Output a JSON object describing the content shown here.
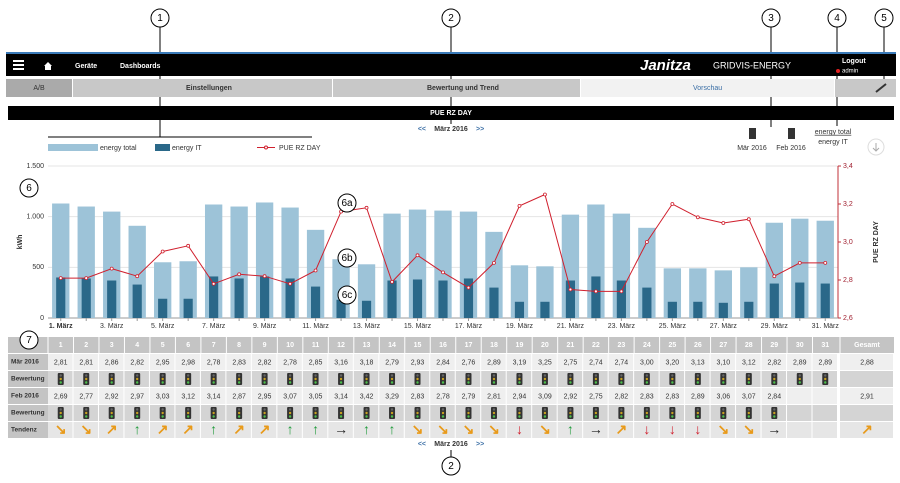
{
  "header": {
    "nav": [
      "Geräte",
      "Dashboards"
    ],
    "brand": "Janitza",
    "product": "GRIDVIS-ENERGY",
    "logout": "Logout",
    "user": "admin"
  },
  "tabs": [
    "A/B",
    "Einstellungen",
    "Bewertung und Trend",
    "Vorschau"
  ],
  "report_title": "PUE RZ DAY",
  "period_nav": {
    "prev": "<<",
    "label": "März 2016",
    "next": ">>"
  },
  "compare": {
    "items": [
      "Mär 2016",
      "Feb 2016"
    ],
    "series": [
      "energy total",
      "energy IT"
    ]
  },
  "callouts": [
    "1",
    "2",
    "3",
    "4",
    "5",
    "6",
    "6a",
    "6b",
    "6c",
    "7",
    "2"
  ],
  "chart_data": {
    "type": "bar",
    "ylabel": "kWh",
    "y2label": "PUE RZ DAY",
    "categories": [
      "1. März",
      null,
      "3. März",
      null,
      "5. März",
      null,
      "7. März",
      null,
      "9. März",
      null,
      "11. März",
      null,
      "13. März",
      null,
      "15. März",
      null,
      "17. März",
      null,
      "19. März",
      null,
      "21. März",
      null,
      "23. März",
      null,
      "25. März",
      null,
      "27. März",
      null,
      "29. März",
      null,
      "31. März"
    ],
    "series": [
      {
        "name": "energy total",
        "color": "#9dc3d8",
        "values": [
          1130,
          1100,
          1050,
          910,
          550,
          560,
          1120,
          1100,
          1140,
          1090,
          870,
          580,
          530,
          1030,
          1070,
          1060,
          1050,
          850,
          520,
          510,
          1020,
          1120,
          1030,
          890,
          490,
          490,
          470,
          500,
          940,
          980,
          960
        ]
      },
      {
        "name": "energy IT",
        "color": "#2a6889",
        "values": [
          400,
          390,
          370,
          330,
          190,
          190,
          410,
          390,
          410,
          390,
          310,
          180,
          170,
          370,
          380,
          370,
          390,
          300,
          160,
          160,
          370,
          410,
          370,
          300,
          160,
          160,
          150,
          160,
          340,
          350,
          340
        ]
      },
      {
        "name": "PUE RZ DAY",
        "color": "#d0202e",
        "type": "line",
        "axis": "y2",
        "values": [
          2.81,
          2.81,
          2.86,
          2.82,
          2.95,
          2.98,
          2.78,
          2.83,
          2.82,
          2.78,
          2.85,
          3.16,
          3.18,
          2.79,
          2.93,
          2.84,
          2.76,
          2.89,
          3.19,
          3.25,
          2.75,
          2.74,
          2.74,
          3.0,
          3.2,
          3.13,
          3.1,
          3.12,
          2.82,
          2.89,
          2.89
        ]
      }
    ],
    "ylim": [
      0,
      1500
    ],
    "yticks": [
      0,
      500,
      {
        "value": 1000,
        "label": "1.000"
      },
      {
        "value": 1500,
        "label": "1.500"
      }
    ],
    "y2lim": [
      2.6,
      3.4
    ],
    "y2ticks": [
      {
        "value": 2.6,
        "label": "2,6"
      },
      {
        "value": 2.8,
        "label": "2,8"
      },
      {
        "value": 3.0,
        "label": "3,0"
      },
      {
        "value": 3.2,
        "label": "3,2"
      },
      {
        "value": 3.4,
        "label": "3,4"
      }
    ],
    "grid": true,
    "legend": "top-left"
  },
  "table": {
    "columns": [
      "1",
      "2",
      "3",
      "4",
      "5",
      "6",
      "7",
      "8",
      "9",
      "10",
      "11",
      "12",
      "13",
      "14",
      "15",
      "16",
      "17",
      "18",
      "19",
      "20",
      "21",
      "22",
      "23",
      "24",
      "25",
      "26",
      "27",
      "28",
      "29",
      "30",
      "31",
      "Gesamt"
    ],
    "rows": [
      {
        "label": "Mär 2016",
        "cells": [
          "2,81",
          "2,81",
          "2,86",
          "2,82",
          "2,95",
          "2,98",
          "2,78",
          "2,83",
          "2,82",
          "2,78",
          "2,85",
          "3,16",
          "3,18",
          "2,79",
          "2,93",
          "2,84",
          "2,76",
          "2,89",
          "3,19",
          "3,25",
          "2,75",
          "2,74",
          "2,74",
          "3,00",
          "3,20",
          "3,13",
          "3,10",
          "3,12",
          "2,82",
          "2,89",
          "2,89",
          "2,88"
        ]
      },
      {
        "label": "Bewertung"
      },
      {
        "label": "Feb 2016",
        "cells": [
          "2,69",
          "2,77",
          "2,92",
          "2,97",
          "3,03",
          "3,12",
          "3,14",
          "2,87",
          "2,95",
          "3,07",
          "3,05",
          "3,14",
          "3,42",
          "3,29",
          "2,83",
          "2,78",
          "2,79",
          "2,81",
          "2,94",
          "3,09",
          "2,92",
          "2,75",
          "2,82",
          "2,83",
          "2,83",
          "2,89",
          "3,06",
          "3,07",
          "2,84",
          null,
          null,
          "2,91"
        ]
      },
      {
        "label": "Bewertung"
      },
      {
        "label": "Tendenz",
        "cells": [
          "↘",
          "↘",
          "↗",
          "↑",
          "↗",
          "↗",
          "↑",
          "↗",
          "↗",
          "↑",
          "↑",
          "→",
          "↑",
          "↑",
          "↘",
          "↘",
          "↘",
          "↘",
          "↓",
          "↘",
          "↑",
          "→",
          "↗",
          "↓",
          "↓",
          "↓",
          "↘",
          "↘",
          "→",
          null,
          null,
          "↗"
        ]
      }
    ]
  }
}
